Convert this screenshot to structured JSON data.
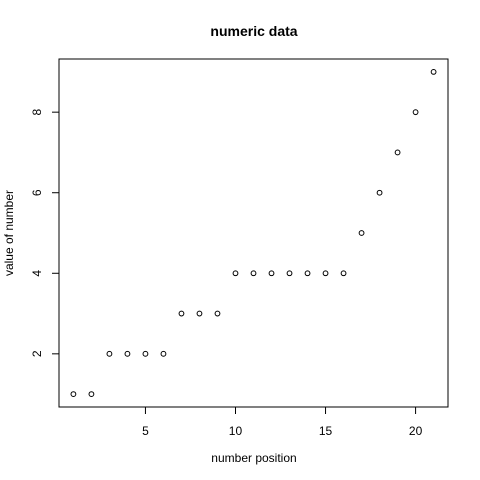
{
  "chart_data": {
    "type": "scatter",
    "title": "numeric data",
    "xlabel": "number position",
    "ylabel": "value of number",
    "x": [
      1,
      2,
      3,
      4,
      5,
      6,
      7,
      8,
      9,
      10,
      11,
      12,
      13,
      14,
      15,
      16,
      17,
      18,
      19,
      20,
      21
    ],
    "y": [
      1,
      1,
      2,
      2,
      2,
      2,
      3,
      3,
      3,
      4,
      4,
      4,
      4,
      4,
      4,
      4,
      5,
      6,
      7,
      8,
      9
    ],
    "xlim": [
      0.2,
      21.8
    ],
    "ylim": [
      0.68,
      9.32
    ],
    "xticks": [
      5,
      10,
      15,
      20
    ],
    "yticks": [
      2,
      4,
      6,
      8
    ],
    "grid": false,
    "point_style": "open-circle",
    "colors": {
      "points": "#000000",
      "axes": "#000000",
      "background": "#ffffff"
    }
  }
}
